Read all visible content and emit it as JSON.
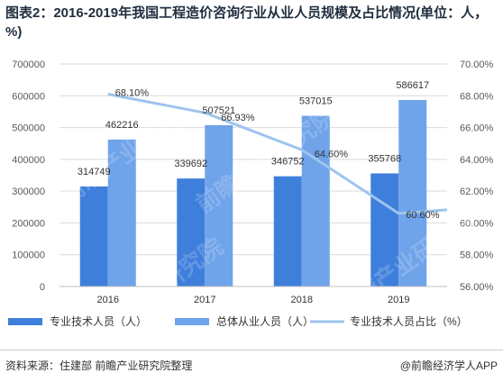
{
  "title": "图表2：2016-2019年我国工程造价咨询行业从业人员规模及占比情况(单位：人，%)",
  "source": "资料来源：住建部 前瞻产业研究院整理",
  "brand": "@前瞻经济学人APP",
  "watermark": "前瞻产业研究院",
  "colors": {
    "series1": "#3f7fdc",
    "series2": "#6fa3ea",
    "line": "#9ec4ee",
    "axis_text": "#595959",
    "grid": "#d9d9d9"
  },
  "chart_data": {
    "type": "bar",
    "categories": [
      "2016",
      "2017",
      "2018",
      "2019"
    ],
    "series": [
      {
        "name": "专业技术人员（人）",
        "type": "bar",
        "axis": "left",
        "values": [
          314749,
          339692,
          346752,
          355768
        ]
      },
      {
        "name": "总体从业人员（人）",
        "type": "bar",
        "axis": "left",
        "values": [
          462216,
          507521,
          537015,
          586617
        ]
      },
      {
        "name": "专业技术人员占比（%）",
        "type": "line",
        "axis": "right",
        "values": [
          68.1,
          66.93,
          64.6,
          60.6
        ]
      }
    ],
    "data_labels": {
      "bars1": [
        "314749",
        "339692",
        "346752",
        "355768"
      ],
      "bars2": [
        "462216",
        "507521",
        "537015",
        "586617"
      ],
      "line": [
        "68.10%",
        "66.93%",
        "64.60%",
        "60.60%"
      ]
    },
    "ylim_left": [
      0,
      700000
    ],
    "yticks_left": [
      "0",
      "100000",
      "200000",
      "300000",
      "400000",
      "500000",
      "600000",
      "700000"
    ],
    "ylim_right": [
      56,
      70
    ],
    "yticks_right": [
      "56.00%",
      "58.00%",
      "60.00%",
      "62.00%",
      "64.00%",
      "66.00%",
      "68.00%",
      "70.00%"
    ],
    "grid": "horizontal",
    "legend_position": "bottom"
  }
}
